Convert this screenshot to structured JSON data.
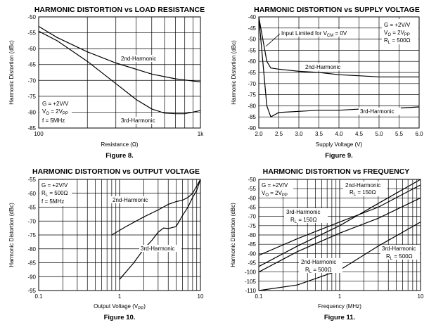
{
  "chart_data": [
    {
      "figure": "Figure 8.",
      "type": "line",
      "title": "HARMONIC DISTORTION vs LOAD RESISTANCE",
      "xlabel": "Resistance (Ω)",
      "ylabel": "Harmonic Distortion (dBc)",
      "xscale": "log",
      "xlim": [
        100,
        1000
      ],
      "ylim": [
        -85,
        -50
      ],
      "x_ticks": [
        {
          "v": 100,
          "label": "100"
        },
        {
          "v": 1000,
          "label": "1k"
        }
      ],
      "y_ticks": [
        -50,
        -55,
        -60,
        -65,
        -70,
        -75,
        -80,
        -85
      ],
      "annotations": [
        {
          "lines": [
            "G = +2V/V",
            "VO = 2VPP",
            "f = 5MHz"
          ]
        }
      ],
      "series": [
        {
          "name": "2nd-Harmonic",
          "x": [
            100,
            130,
            200,
            300,
            500,
            700,
            1000
          ],
          "y": [
            -53,
            -56.5,
            -61,
            -64.5,
            -68,
            -69.5,
            -70.5
          ]
        },
        {
          "name": "3rd-Harmonic",
          "x": [
            100,
            130,
            200,
            300,
            400,
            500,
            600,
            700,
            800,
            1000
          ],
          "y": [
            -54.5,
            -57.5,
            -64,
            -71,
            -76,
            -79,
            -80.3,
            -80.5,
            -80.5,
            -79.5
          ]
        }
      ]
    },
    {
      "figure": "Figure 9.",
      "type": "line",
      "title": "HARMONIC DISTORTION vs SUPPLY VOLTAGE",
      "xlabel": "Supply Voltage (V)",
      "ylabel": "Harmonic Distortion (dBc)",
      "xscale": "linear",
      "xlim": [
        2.0,
        6.0
      ],
      "ylim": [
        -90,
        -40
      ],
      "x_ticks": [
        {
          "v": 2.0,
          "label": "2.0"
        },
        {
          "v": 2.5,
          "label": "2.5"
        },
        {
          "v": 3.0,
          "label": "3.0"
        },
        {
          "v": 3.5,
          "label": "3.5"
        },
        {
          "v": 4.0,
          "label": "4.0"
        },
        {
          "v": 4.5,
          "label": "4.5"
        },
        {
          "v": 5.0,
          "label": "5.0"
        },
        {
          "v": 5.5,
          "label": "5.5"
        },
        {
          "v": 6.0,
          "label": "6.0"
        }
      ],
      "y_ticks": [
        -40,
        -45,
        -50,
        -55,
        -60,
        -65,
        -70,
        -75,
        -80,
        -85,
        -90
      ],
      "annotations": [
        {
          "lines": [
            "Input Limited for VCM = 0V"
          ]
        },
        {
          "lines": [
            "G = +2V/V",
            "VO = 2VPP",
            "RL = 500Ω"
          ]
        }
      ],
      "series": [
        {
          "name": "2nd-Harmonic",
          "x": [
            2.0,
            2.1,
            2.2,
            2.3,
            2.5,
            3.0,
            3.5,
            4.0,
            4.5,
            5.0,
            5.5,
            6.0
          ],
          "y": [
            -40,
            -50,
            -60,
            -63,
            -63.5,
            -64.5,
            -65,
            -66,
            -66.5,
            -67,
            -67,
            -67
          ]
        },
        {
          "name": "3rd-Harmonic",
          "x": [
            2.0,
            2.1,
            2.2,
            2.3,
            2.4,
            2.5,
            3.0,
            3.5,
            4.0,
            4.5,
            5.0,
            5.5,
            6.0
          ],
          "y": [
            -40,
            -60,
            -80,
            -85,
            -84,
            -83,
            -82.5,
            -82,
            -82,
            -81.5,
            -81,
            -81,
            -80.5
          ]
        }
      ]
    },
    {
      "figure": "Figure 10.",
      "type": "line",
      "title": "HARMONIC DISTORTION vs OUTPUT VOLTAGE",
      "xlabel": "Output Voltage (VPP)",
      "ylabel": "Harmonic Distortion (dBc)",
      "xscale": "log",
      "xlim": [
        0.1,
        10
      ],
      "ylim": [
        -95,
        -55
      ],
      "x_ticks": [
        {
          "v": 0.1,
          "label": "0.1"
        },
        {
          "v": 1,
          "label": "1"
        },
        {
          "v": 10,
          "label": "10"
        }
      ],
      "y_ticks": [
        -55,
        -60,
        -65,
        -70,
        -75,
        -80,
        -85,
        -90,
        -95
      ],
      "annotations": [
        {
          "lines": [
            "G = +2V/V",
            "RL = 500Ω",
            "f = 5MHz"
          ]
        }
      ],
      "series": [
        {
          "name": "2nd-Harmonic",
          "x": [
            0.8,
            1.2,
            2,
            3,
            4,
            5,
            6,
            7,
            8,
            10
          ],
          "y": [
            -75,
            -72,
            -68.5,
            -66,
            -64,
            -63,
            -62.5,
            -61.5,
            -60,
            -55
          ]
        },
        {
          "name": "3rd-Harmonic",
          "x": [
            1,
            1.5,
            2,
            2.5,
            3,
            3.5,
            4,
            5,
            6,
            7,
            8,
            9,
            10
          ],
          "y": [
            -91,
            -85,
            -80,
            -77,
            -74,
            -72.5,
            -72.7,
            -72,
            -68,
            -65,
            -61.5,
            -59,
            -55
          ]
        }
      ]
    },
    {
      "figure": "Figure 11.",
      "type": "line",
      "title": "HARMONIC DISTORTION vs FREQUENCY",
      "xlabel": "Frequency (MHz)",
      "ylabel": "Harmonic Distortion (dBc)",
      "xscale": "log",
      "xlim": [
        0.1,
        10
      ],
      "ylim": [
        -110,
        -50
      ],
      "x_ticks": [
        {
          "v": 0.1,
          "label": "0.1"
        },
        {
          "v": 1,
          "label": "1"
        },
        {
          "v": 10,
          "label": "10"
        }
      ],
      "y_ticks": [
        -50,
        -55,
        -60,
        -65,
        -70,
        -75,
        -80,
        -85,
        -90,
        -95,
        -100,
        -105,
        -110
      ],
      "annotations": [
        {
          "lines": [
            "G = +2V/V",
            "VO = 2VPP"
          ]
        }
      ],
      "series": [
        {
          "name": "2nd-Harmonic RL = 150Ω",
          "x": [
            0.1,
            0.3,
            1,
            3,
            10
          ],
          "y": [
            -91,
            -82,
            -73,
            -65,
            -53
          ]
        },
        {
          "name": "3rd-Harmonic RL = 150Ω",
          "x": [
            0.1,
            0.3,
            1,
            3,
            10
          ],
          "y": [
            -97,
            -86,
            -75,
            -63,
            -50
          ]
        },
        {
          "name": "2nd-Harmonic RL = 500Ω",
          "x": [
            0.1,
            0.3,
            1,
            3,
            10
          ],
          "y": [
            -100,
            -89,
            -79,
            -71,
            -60
          ]
        },
        {
          "name": "3rd-Harmonic RL = 500Ω",
          "x": [
            0.1,
            0.3,
            1,
            3,
            10
          ],
          "y": [
            -112,
            -107,
            -99,
            -86,
            -73
          ]
        }
      ]
    }
  ],
  "labels": {
    "fig8": {
      "annot": [
        "G = +2V/V",
        "V",
        "O",
        " = 2V",
        "PP",
        "f = 5MHz"
      ],
      "s2": "2nd-Harmonic",
      "s3": "3rd-Harmonic"
    },
    "fig9": {
      "limit_pre": "Input Limited for V",
      "limit_sub": "CM",
      "limit_post": " = 0V",
      "annot_g": "G = +2V/V",
      "annot_vo_main": "V",
      "annot_vo_sub": "O",
      "annot_vo_eq": " = 2V",
      "annot_vo_pp": "PP",
      "annot_rl_main": "R",
      "annot_rl_sub": "L",
      "annot_rl_val": " = 500Ω",
      "s2": "2nd-Harmonic",
      "s3": "3rd-Harmonic"
    },
    "fig10": {
      "annot_g": "G = +2V/V",
      "annot_rl_main": "R",
      "annot_rl_sub": "L",
      "annot_rl_val": " = 500Ω",
      "annot_f": "f = 5MHz",
      "s2": "2nd-Harmonic",
      "s3": "3rd-Harmonic",
      "xlabel_pre": "Output Voltage (V",
      "xlabel_sub": "PP",
      "xlabel_post": ")"
    },
    "fig11": {
      "annot_g": "G = +2V/V",
      "annot_vo_main": "V",
      "annot_vo_sub": "O",
      "annot_vo_eq": " = 2V",
      "annot_vo_pp": "PP",
      "s2_150": "2nd-Harmonic",
      "s3_150": "3rd-Harmonic",
      "s2_500": "2nd-Harmonic",
      "s3_500": "3rd-Harmonic",
      "rl_main": "R",
      "rl_sub": "L",
      "v150": " = 150Ω",
      "v500": " = 500Ω"
    }
  }
}
